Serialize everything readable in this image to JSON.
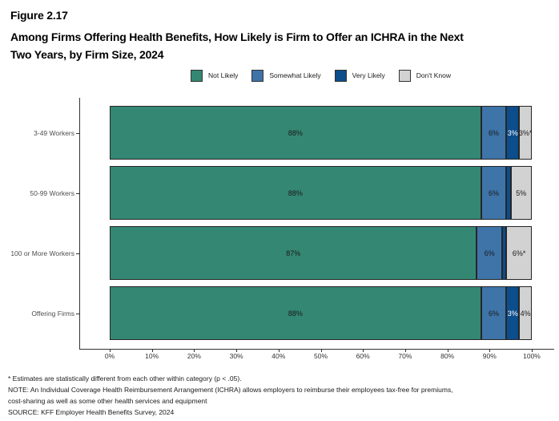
{
  "figure": {
    "label": "Figure 2.17",
    "title_line1": "Among Firms Offering Health Benefits, How Likely is Firm to Offer an ICHRA in the Next",
    "title_line2": "Two Years, by Firm Size, 2024"
  },
  "chart_data": {
    "type": "bar",
    "orientation": "horizontal",
    "stacked": true,
    "title": "Among Firms Offering Health Benefits, How Likely is Firm to Offer an ICHRA in the Next Two Years, by Firm Size, 2024",
    "categories": [
      "3-49 Workers",
      "50-99 Workers",
      "100 or More Workers",
      "Offering Firms"
    ],
    "series": [
      {
        "name": "Not Likely",
        "color": "#348773",
        "label_color": "#1a1a1a",
        "values": [
          88,
          88,
          87,
          88
        ],
        "labels": [
          "88%",
          "88%",
          "87%",
          "88%"
        ]
      },
      {
        "name": "Somewhat Likely",
        "color": "#3E74A8",
        "label_color": "#1a1a1a",
        "values": [
          6,
          6,
          6,
          6
        ],
        "labels": [
          "6%",
          "6%",
          "6%",
          "6%"
        ]
      },
      {
        "name": "Very Likely",
        "color": "#0C4D8C",
        "label_color": "#ffffff",
        "values": [
          3,
          1,
          1,
          3
        ],
        "labels": [
          "3%",
          "",
          "",
          "3%"
        ]
      },
      {
        "name": "Don't Know",
        "color": "#D2D2D2",
        "label_color": "#1a1a1a",
        "values": [
          3,
          5,
          6,
          4
        ],
        "labels": [
          "3%*",
          "5%",
          "6%*",
          "4%"
        ]
      }
    ],
    "x_ticks": [
      "0%",
      "10%",
      "20%",
      "30%",
      "40%",
      "50%",
      "60%",
      "70%",
      "80%",
      "90%",
      "100%"
    ],
    "xlim": [
      0,
      100
    ],
    "grid": false,
    "legend_position": "top",
    "bar_border_color": "#262626"
  },
  "footnotes": [
    "* Estimates are statistically different from each other within category (p < .05).",
    "NOTE: An Individual Coverage Health Reimbursement Arrangement (ICHRA) allows employers to reimburse their employees tax-free for premiums,",
    "cost-sharing as well as some other health services and equipment",
    "SOURCE: KFF Employer Health Benefits Survey, 2024"
  ]
}
